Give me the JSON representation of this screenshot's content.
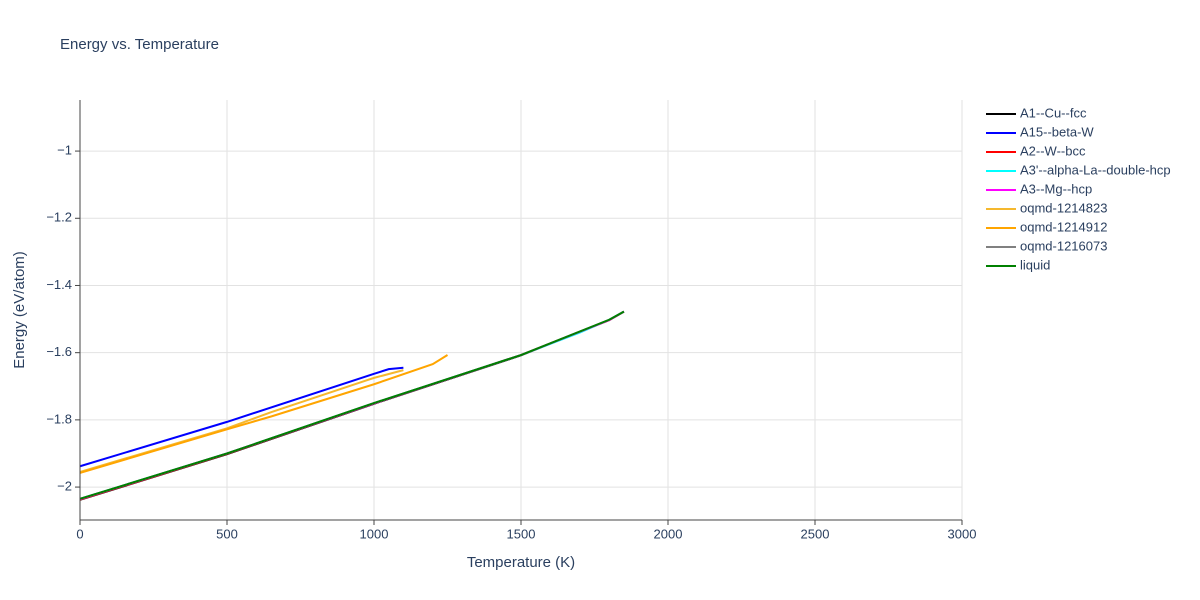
{
  "chart_data": {
    "type": "line",
    "title": "Energy vs. Temperature",
    "x_label": "Temperature (K)",
    "y_label": "Energy (eV/atom)",
    "xlim": [
      0,
      3000
    ],
    "xticks": [
      0,
      500,
      1000,
      1500,
      2000,
      2500,
      3000
    ],
    "ylim": [
      -2.098,
      -0.848
    ],
    "yticks": [
      {
        "value": -2,
        "label": "−2"
      },
      {
        "value": -1.8,
        "label": "−1.8"
      },
      {
        "value": -1.6,
        "label": "−1.6"
      },
      {
        "value": -1.4,
        "label": "−1.4"
      },
      {
        "value": -1.2,
        "label": "−1.2"
      },
      {
        "value": -1,
        "label": "−1"
      }
    ],
    "grid": true,
    "legend": "right",
    "series": [
      {
        "name": "A1--Cu--fcc",
        "color": "#000000",
        "x": [
          0,
          500,
          1000,
          1500,
          1800,
          1850
        ],
        "values": [
          -2.038,
          -1.902,
          -1.752,
          -1.608,
          -1.503,
          -1.478
        ]
      },
      {
        "name": "A15--beta-W",
        "color": "#0000ff",
        "x": [
          0,
          500,
          1000,
          1050,
          1100
        ],
        "values": [
          -1.938,
          -1.806,
          -1.663,
          -1.649,
          -1.645
        ]
      },
      {
        "name": "A2--W--bcc",
        "color": "#ff0000",
        "x": [
          0,
          500,
          1000,
          1500,
          1800,
          1850
        ],
        "values": [
          -2.037,
          -1.901,
          -1.751,
          -1.607,
          -1.503,
          -1.478
        ]
      },
      {
        "name": "A3'--alpha-La--double-hcp",
        "color": "#00ffff",
        "x": [
          0,
          500,
          1000,
          1500,
          1700,
          1800,
          1850
        ],
        "values": [
          -2.035,
          -1.9,
          -1.75,
          -1.607,
          -1.54,
          -1.502,
          -1.478
        ]
      },
      {
        "name": "A3--Mg--hcp",
        "color": "#ff00ff",
        "x": [
          0,
          500,
          1000,
          1500,
          1800,
          1850
        ],
        "values": [
          -2.036,
          -1.9,
          -1.751,
          -1.607,
          -1.503,
          -1.478
        ]
      },
      {
        "name": "oqmd-1214823",
        "color": "#f5b82e",
        "x": [
          0,
          500,
          650,
          1000,
          1100
        ],
        "values": [
          -1.955,
          -1.825,
          -1.777,
          -1.675,
          -1.652
        ]
      },
      {
        "name": "oqmd-1214912",
        "color": "#ffa500",
        "x": [
          0,
          500,
          650,
          1000,
          1200,
          1250
        ],
        "values": [
          -1.958,
          -1.828,
          -1.79,
          -1.694,
          -1.634,
          -1.607
        ]
      },
      {
        "name": "oqmd-1216073",
        "color": "#808080",
        "x": [
          0,
          500,
          1000,
          1500,
          1800,
          1850
        ],
        "values": [
          -2.035,
          -1.9,
          -1.75,
          -1.607,
          -1.502,
          -1.478
        ]
      },
      {
        "name": "liquid",
        "color": "#008000",
        "x": [
          0,
          500,
          1000,
          1500,
          1800,
          1850
        ],
        "values": [
          -2.035,
          -1.9,
          -1.75,
          -1.607,
          -1.502,
          -1.478
        ]
      }
    ]
  }
}
